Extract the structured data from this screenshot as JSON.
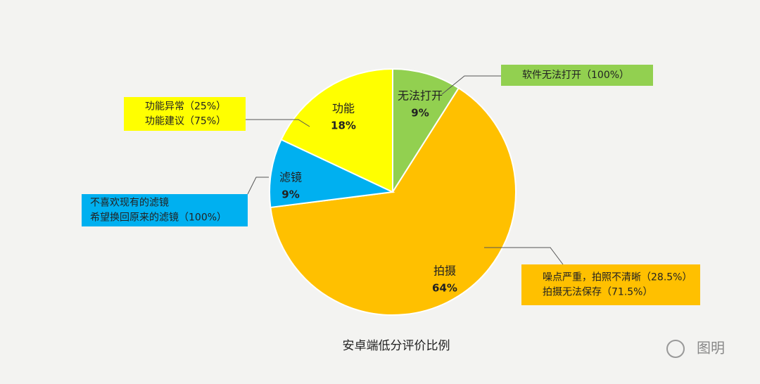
{
  "chart_data": {
    "type": "pie",
    "title": "安卓端低分评价比例",
    "categories": [
      "无法打开",
      "拍摄",
      "滤镜",
      "功能"
    ],
    "values": [
      9,
      64,
      9,
      18
    ],
    "value_labels": [
      "9%",
      "64%",
      "9%",
      "18%"
    ],
    "colors": [
      "#92d050",
      "#ffc000",
      "#00b0f0",
      "#ffff00"
    ],
    "annotations": [
      {
        "lines": [
          "软件无法打开（100%）"
        ]
      },
      {
        "lines": [
          "噪点严重，拍照不清晰（28.5%）",
          "拍摄无法保存（71.5%）"
        ]
      },
      {
        "lines": [
          "不喜欢现有的滤镜",
          "希望换回原来的滤镜（100%）"
        ]
      },
      {
        "lines": [
          "功能异常（25%）",
          "功能建议（75%）"
        ]
      }
    ],
    "watermark": "图明"
  }
}
